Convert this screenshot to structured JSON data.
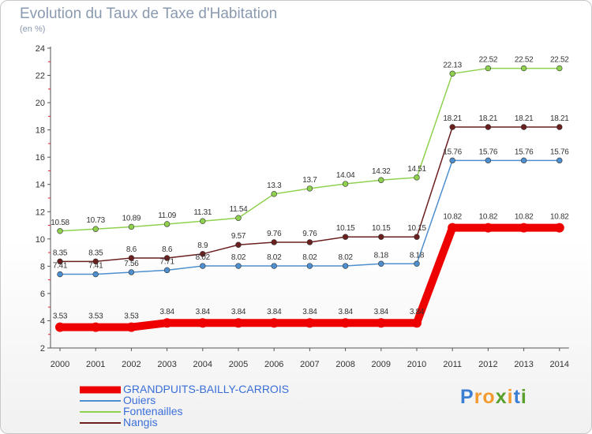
{
  "title": "Evolution du Taux de Taxe d'Habitation",
  "subtitle": "(en %)",
  "brand": {
    "text": "Proxiti",
    "letter_colors": [
      "#3a7fd4",
      "#f29b2e",
      "#f29b2e",
      "#5aa02c",
      "#f29b2e",
      "#3a7fd4",
      "#5aa02c"
    ]
  },
  "chart_data": {
    "type": "line",
    "x": [
      "2000",
      "2001",
      "2002",
      "2003",
      "2004",
      "2005",
      "2006",
      "2007",
      "2008",
      "2009",
      "2010",
      "2011",
      "2012",
      "2013",
      "2014"
    ],
    "ylim": [
      2,
      24
    ],
    "yticks": [
      2,
      4,
      6,
      8,
      10,
      12,
      14,
      16,
      18,
      20,
      22,
      24
    ],
    "grid": false,
    "legend_position": "bottom-left",
    "series": [
      {
        "name": "GRANDPUITS-BAILLY-CARROIS",
        "color": "#ee0000",
        "emphasis": true,
        "values": [
          3.53,
          3.53,
          3.53,
          3.84,
          3.84,
          3.84,
          3.84,
          3.84,
          3.84,
          3.84,
          3.84,
          10.82,
          10.82,
          10.82,
          10.82
        ],
        "labels": [
          "3.53",
          "3.53",
          "3.53",
          "3.84",
          "3.84",
          "3.84",
          "3.84",
          "3.84",
          "3.84",
          "3.84",
          "3.84",
          "10.82",
          "10.82",
          "10.82",
          "10.82"
        ]
      },
      {
        "name": "Ouiers",
        "color": "#4d8fcf",
        "values": [
          7.41,
          7.41,
          7.56,
          7.71,
          8.02,
          8.02,
          8.02,
          8.02,
          8.02,
          8.18,
          8.18,
          15.76,
          15.76,
          15.76,
          15.76
        ],
        "labels": [
          "7.41",
          "7.41",
          "7.56",
          "7.71",
          "8.02",
          "8.02",
          "8.02",
          "8.02",
          "8.02",
          "8.18",
          "8.18",
          "15.76",
          "15.76",
          "15.76",
          "15.76"
        ]
      },
      {
        "name": "Fontenailles",
        "color": "#8fd14f",
        "values": [
          10.58,
          10.73,
          10.89,
          11.09,
          11.31,
          11.54,
          13.3,
          13.7,
          14.04,
          14.32,
          14.51,
          22.13,
          22.52,
          22.52,
          22.52
        ],
        "labels": [
          "10.58",
          "10.73",
          "10.89",
          "11.09",
          "11.31",
          "11.54",
          "13.3",
          "13.7",
          "14.04",
          "14.32",
          "14.51",
          "22.13",
          "22.52",
          "22.52",
          "22.52"
        ]
      },
      {
        "name": "Nangis",
        "color": "#6b1f1f",
        "values": [
          8.35,
          8.35,
          8.6,
          8.6,
          8.9,
          9.57,
          9.76,
          9.76,
          10.15,
          10.15,
          10.15,
          18.21,
          18.21,
          18.21,
          18.21
        ],
        "labels": [
          "8.35",
          "8.35",
          "8.6",
          "8.6",
          "8.9",
          "9.57",
          "9.76",
          "9.76",
          "10.15",
          "10.15",
          "10.15",
          "18.21",
          "18.21",
          "18.21",
          "18.21"
        ]
      }
    ]
  }
}
